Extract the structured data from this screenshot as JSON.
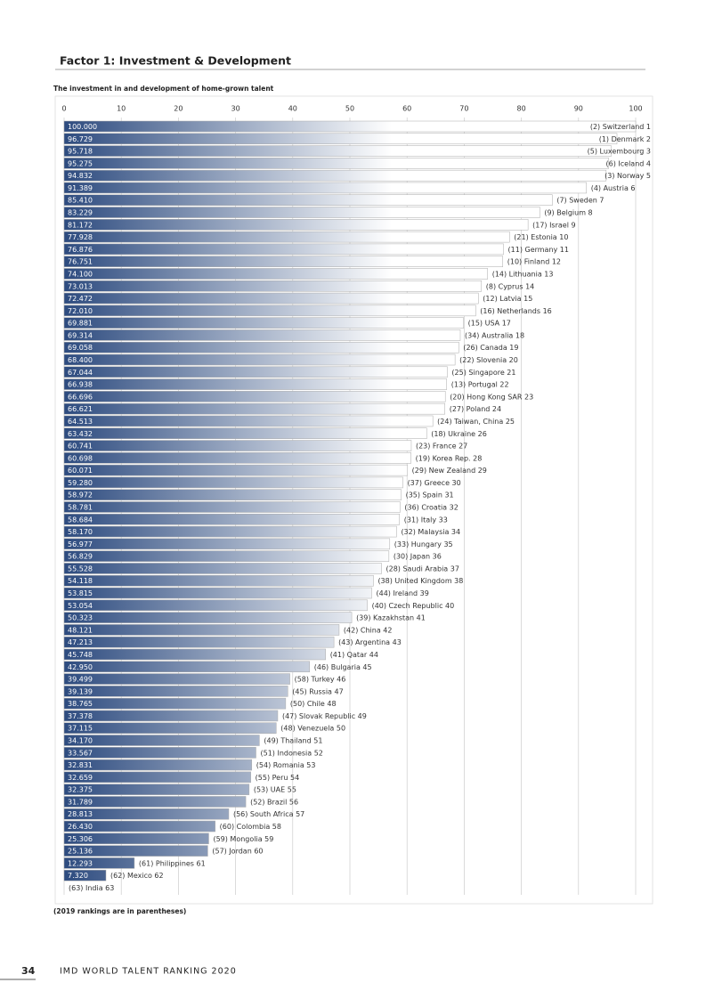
{
  "header": {
    "title": "Factor 1: Investment & Development"
  },
  "chart_data": {
    "type": "hbar",
    "title": "The investment in and development of home-grown talent",
    "categories": [
      "(2) Switzerland 1",
      "(1) Denmark 2",
      "(5) Luxembourg 3",
      "(6) Iceland 4",
      "(3) Norway 5",
      "(4) Austria 6",
      "(7) Sweden 7",
      "(9) Belgium 8",
      "(17) Israel 9",
      "(21) Estonia 10",
      "(11) Germany 11",
      "(10) Finland 12",
      "(14) Lithuania 13",
      "(8) Cyprus 14",
      "(12) Latvia 15",
      "(16) Netherlands 16",
      "(15) USA 17",
      "(34) Australia 18",
      "(26) Canada 19",
      "(22) Slovenia 20",
      "(25) Singapore 21",
      "(13) Portugal 22",
      "(20) Hong Kong SAR 23",
      "(27) Poland 24",
      "(24) Taiwan, China 25",
      "(18) Ukraine 26",
      "(23) France 27",
      "(19) Korea Rep. 28",
      "(29) New Zealand 29",
      "(37) Greece 30",
      "(35) Spain 31",
      "(36) Croatia 32",
      "(31) Italy 33",
      "(32) Malaysia 34",
      "(33) Hungary 35",
      "(30) Japan 36",
      "(28) Saudi Arabia 37",
      "(38) United Kingdom 38",
      "(44) Ireland 39",
      "(40) Czech Republic 40",
      "(39) Kazakhstan 41",
      "(42) China 42",
      "(43) Argentina 43",
      "(41) Qatar 44",
      "(46) Bulgaria 45",
      "(58) Turkey 46",
      "(45) Russia 47",
      "(50) Chile 48",
      "(47) Slovak Republic 49",
      "(48) Venezuela 50",
      "(49) Thailand 51",
      "(51) Indonesia 52",
      "(54) Romania 53",
      "(55) Peru 54",
      "(53) UAE 55",
      "(52) Brazil 56",
      "(56) South Africa 57",
      "(60) Colombia 58",
      "(59) Mongolia 59",
      "(57) Jordan 60",
      "(61) Philippines 61",
      "(62) Mexico 62",
      "(63) India 63"
    ],
    "values": [
      100.0,
      96.729,
      95.718,
      95.275,
      94.832,
      91.389,
      85.41,
      83.229,
      81.172,
      77.928,
      76.876,
      76.751,
      74.1,
      73.013,
      72.472,
      72.01,
      69.881,
      69.314,
      69.058,
      68.4,
      67.044,
      66.938,
      66.696,
      66.621,
      64.513,
      63.432,
      60.741,
      60.698,
      60.071,
      59.28,
      58.972,
      58.781,
      58.684,
      58.17,
      56.977,
      56.829,
      55.528,
      54.118,
      53.815,
      53.054,
      50.323,
      48.121,
      47.213,
      45.748,
      42.95,
      39.499,
      39.139,
      38.765,
      37.378,
      37.115,
      34.17,
      33.567,
      32.831,
      32.659,
      32.375,
      31.789,
      28.813,
      26.43,
      25.306,
      25.136,
      12.293,
      7.32,
      0
    ],
    "value_labels": [
      "100.000",
      "96.729",
      "95.718",
      "95.275",
      "94.832",
      "91.389",
      "85.410",
      "83.229",
      "81.172",
      "77.928",
      "76.876",
      "76.751",
      "74.100",
      "73.013",
      "72.472",
      "72.010",
      "69.881",
      "69.314",
      "69.058",
      "68.400",
      "67.044",
      "66.938",
      "66.696",
      "66.621",
      "64.513",
      "63.432",
      "60.741",
      "60.698",
      "60.071",
      "59.280",
      "58.972",
      "58.781",
      "58.684",
      "58.170",
      "56.977",
      "56.829",
      "55.528",
      "54.118",
      "53.815",
      "53.054",
      "50.323",
      "48.121",
      "47.213",
      "45.748",
      "42.950",
      "39.499",
      "39.139",
      "38.765",
      "37.378",
      "37.115",
      "34.170",
      "33.567",
      "32.831",
      "32.659",
      "32.375",
      "31.789",
      "28.813",
      "26.430",
      "25.306",
      "25.136",
      "12.293",
      "7.320",
      null
    ],
    "xlim": [
      0,
      100
    ],
    "xticks": [
      0,
      10,
      20,
      30,
      40,
      50,
      60,
      70,
      80,
      90,
      100
    ],
    "grid": true,
    "color": "#2d4b7f",
    "footnote": "(2019 rankings are in parentheses)"
  },
  "footer": {
    "page": "34",
    "text": "IMD WORLD TALENT RANKING 2020"
  }
}
